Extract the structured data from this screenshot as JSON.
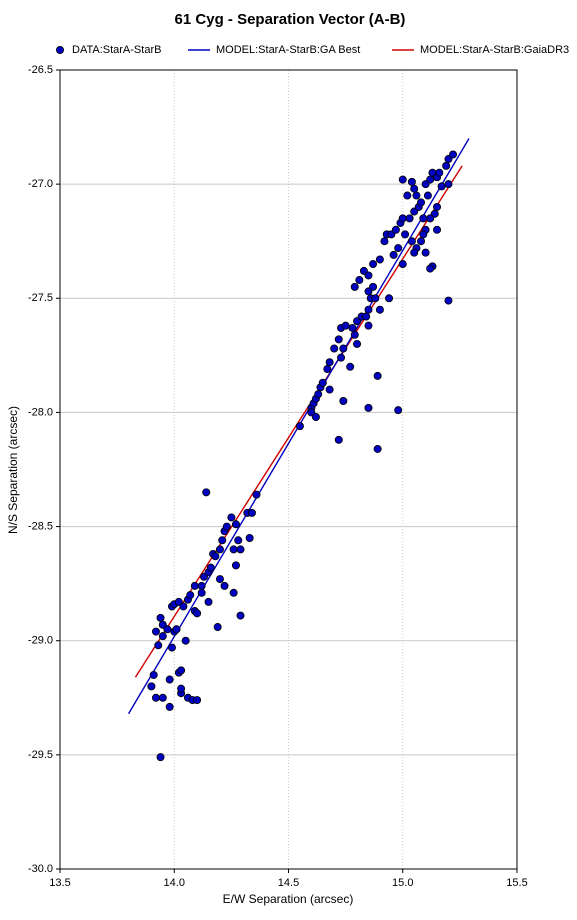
{
  "chart_data": {
    "type": "scatter",
    "title": "61 Cyg - Separation Vector (A-B)",
    "x_label": "E/W Separation (arcsec)",
    "y_label": "N/S Separation (arcsec)",
    "xlim": [
      13.5,
      15.5
    ],
    "xticks": [
      13.5,
      {
        "value": 14,
        "label": "14.0"
      },
      14.5,
      {
        "value": 15,
        "label": "15.0"
      },
      15.5
    ],
    "ylim": [
      -30,
      -26.5
    ],
    "yticks": [
      {
        "value": -30,
        "label": "-30.0"
      },
      -29.5,
      {
        "value": -29,
        "label": "-29.0"
      },
      -28.5,
      {
        "value": -28,
        "label": "-28.0"
      },
      -27.5,
      {
        "value": -27,
        "label": "-27.0"
      },
      -26.5
    ],
    "grid": true,
    "series": [
      {
        "name": "DATA:StarA-StarB",
        "kind": "points",
        "color": "#0000c0",
        "x": [
          13.94,
          13.92,
          13.95,
          13.98,
          13.9,
          13.91,
          13.98,
          14.03,
          14.03,
          14.06,
          14.08,
          14.1,
          14.02,
          14.03,
          13.93,
          13.95,
          13.92,
          13.95,
          13.97,
          13.94,
          13.99,
          14.0,
          14.02,
          14.0,
          13.99,
          14.01,
          14.04,
          14.06,
          14.07,
          14.09,
          14.1,
          14.05,
          14.09,
          14.12,
          14.13,
          14.15,
          14.16,
          14.17,
          14.18,
          14.2,
          14.21,
          14.22,
          14.23,
          14.25,
          14.27,
          14.26,
          14.29,
          14.28,
          14.32,
          14.34,
          14.36,
          14.33,
          14.14,
          14.2,
          14.22,
          14.26,
          14.29,
          14.27,
          14.19,
          14.15,
          14.12,
          14.55,
          14.6,
          14.61,
          14.62,
          14.63,
          14.6,
          14.62,
          14.64,
          14.65,
          14.67,
          14.68,
          14.7,
          14.72,
          14.73,
          14.75,
          14.78,
          14.79,
          14.8,
          14.82,
          14.84,
          14.85,
          14.86,
          14.87,
          14.85,
          14.83,
          14.81,
          14.79,
          14.85,
          14.87,
          14.9,
          14.92,
          14.93,
          14.95,
          14.97,
          14.99,
          15.0,
          15.03,
          15.05,
          15.07,
          15.08,
          15.06,
          15.05,
          15.02,
          15.0,
          15.04,
          15.1,
          15.12,
          15.13,
          15.15,
          15.16,
          15.2,
          15.22,
          15.19,
          15.17,
          15.15,
          15.14,
          15.12,
          15.1,
          15.09,
          15.08,
          15.06,
          15.05,
          15.04,
          15.01,
          14.98,
          14.96,
          15.13,
          15.12,
          15.2,
          14.94,
          14.9,
          14.85,
          14.88,
          14.8,
          14.77,
          14.73,
          14.74,
          14.68,
          14.72,
          14.89,
          14.89,
          14.85,
          14.98,
          14.74,
          15.1,
          15.2,
          15.09,
          15.11,
          15.15,
          15.0
        ],
        "values": [
          -29.51,
          -29.25,
          -29.25,
          -29.29,
          -29.2,
          -29.15,
          -29.17,
          -29.23,
          -29.21,
          -29.25,
          -29.26,
          -29.26,
          -29.14,
          -29.13,
          -29.02,
          -28.98,
          -28.96,
          -28.93,
          -28.95,
          -28.9,
          -28.85,
          -28.84,
          -28.83,
          -28.96,
          -29.03,
          -28.95,
          -28.85,
          -28.82,
          -28.8,
          -28.87,
          -28.88,
          -29.0,
          -28.76,
          -28.76,
          -28.72,
          -28.7,
          -28.68,
          -28.62,
          -28.63,
          -28.6,
          -28.56,
          -28.52,
          -28.5,
          -28.46,
          -28.49,
          -28.6,
          -28.6,
          -28.56,
          -28.44,
          -28.44,
          -28.36,
          -28.55,
          -28.35,
          -28.73,
          -28.76,
          -28.79,
          -28.89,
          -28.67,
          -28.94,
          -28.83,
          -28.79,
          -28.06,
          -27.98,
          -27.96,
          -27.94,
          -27.92,
          -28.0,
          -28.02,
          -27.89,
          -27.87,
          -27.81,
          -27.78,
          -27.72,
          -27.68,
          -27.63,
          -27.62,
          -27.63,
          -27.66,
          -27.6,
          -27.58,
          -27.58,
          -27.55,
          -27.5,
          -27.45,
          -27.47,
          -27.38,
          -27.42,
          -27.45,
          -27.4,
          -27.35,
          -27.33,
          -27.25,
          -27.22,
          -27.22,
          -27.2,
          -27.17,
          -27.15,
          -27.15,
          -27.12,
          -27.1,
          -27.08,
          -27.05,
          -27.02,
          -27.05,
          -26.98,
          -26.99,
          -27.0,
          -26.98,
          -26.95,
          -26.97,
          -26.95,
          -26.89,
          -26.87,
          -26.92,
          -27.01,
          -27.1,
          -27.13,
          -27.15,
          -27.2,
          -27.22,
          -27.25,
          -27.28,
          -27.3,
          -27.25,
          -27.22,
          -27.28,
          -27.31,
          -27.36,
          -27.37,
          -27.51,
          -27.5,
          -27.55,
          -27.62,
          -27.5,
          -27.7,
          -27.8,
          -27.76,
          -27.72,
          -27.9,
          -28.12,
          -28.16,
          -27.84,
          -27.98,
          -27.99,
          -27.95,
          -27.3,
          -27.0,
          -27.15,
          -27.05,
          -27.2,
          -27.35
        ]
      },
      {
        "name": "MODEL:StarA-StarB:GA Best",
        "kind": "line",
        "color": "#0000c0",
        "x": [
          13.8,
          15.29
        ],
        "values": [
          -29.32,
          -26.8
        ]
      },
      {
        "name": "MODEL:StarA-StarB:GaiaDR3",
        "kind": "line",
        "color": "#d00000",
        "x": [
          13.83,
          15.26
        ],
        "values": [
          -29.16,
          -26.92
        ]
      }
    ]
  }
}
